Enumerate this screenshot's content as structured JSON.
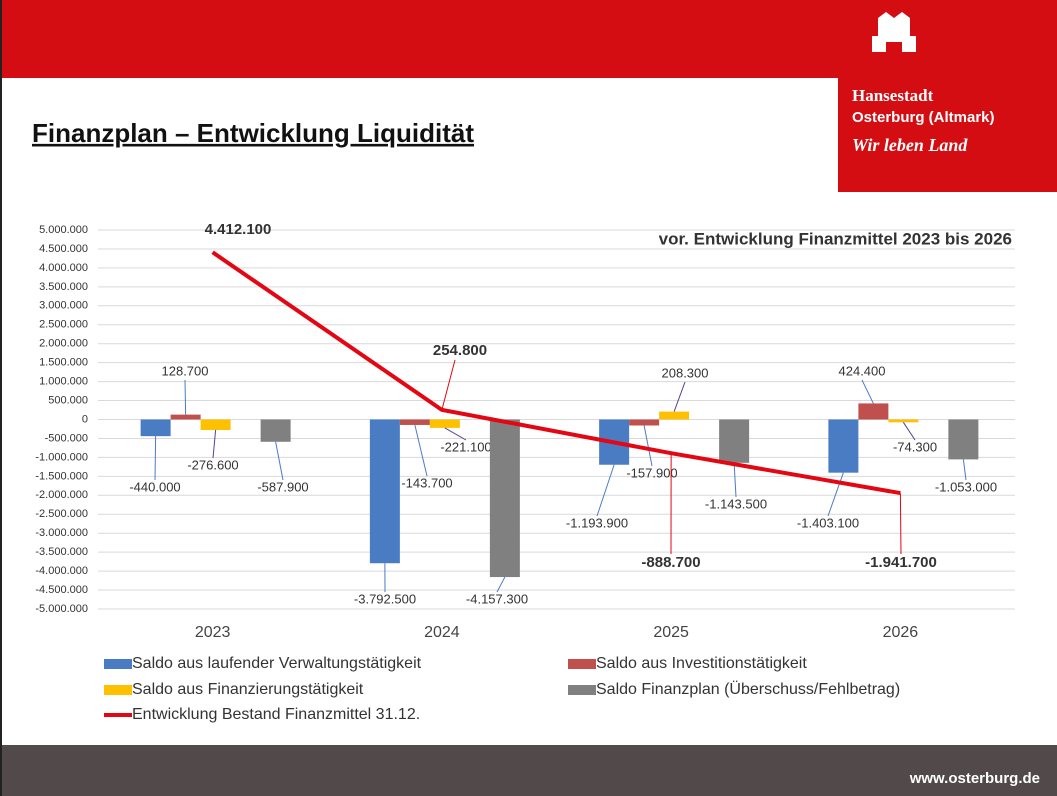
{
  "slide": {
    "title": "Finanzplan – Entwicklung Liquidität",
    "logo_line1": "Hansestadt",
    "logo_line2": "Osterburg (Altmark)",
    "logo_slogan": "Wir leben Land",
    "footer": "www.osterburg.de"
  },
  "chart_data": {
    "type": "bar",
    "title": "vor. Entwicklung Finanzmittel  2023 bis 2026",
    "categories": [
      "2023",
      "2024",
      "2025",
      "2026"
    ],
    "series": [
      {
        "name": "Saldo aus laufender Verwaltungstätigkeit",
        "color": "#4a7cc4",
        "values": [
          -440000,
          -3792500,
          -1193900,
          -1403100
        ],
        "value_labels": [
          "-440.000",
          "-3.792.500",
          "-1.193.900",
          "-1.403.100"
        ]
      },
      {
        "name": "Saldo aus Investitionstätigkeit",
        "color": "#c0504d",
        "values": [
          128700,
          -143700,
          -157900,
          424400
        ],
        "value_labels": [
          "128.700",
          "-143.700",
          "-157.900",
          "424.400"
        ]
      },
      {
        "name": "Saldo aus Finanzierungstätigkeit",
        "color": "#ffc000",
        "values": [
          -276600,
          -221100,
          208300,
          -74300
        ],
        "value_labels": [
          "-276.600",
          "-221.100",
          "208.300",
          "-74.300"
        ]
      },
      {
        "name": "Saldo Finanzplan (Überschuss/Fehlbetrag)",
        "color": "#808080",
        "values": [
          -587900,
          -4157300,
          -1143500,
          -1053000
        ],
        "value_labels": [
          "-587.900",
          "-4.157.300",
          "-1.143.500",
          "-1.053.000"
        ]
      },
      {
        "name": "Entwicklung Bestand Finanzmittel 31.12.",
        "type": "line",
        "color": "#e30613",
        "values": [
          4412100,
          254800,
          -888700,
          -1941700
        ],
        "value_labels": [
          "4.412.100",
          "254.800",
          "-888.700",
          "-1.941.700"
        ]
      }
    ],
    "ylim": [
      -5000000,
      5000000
    ],
    "yticks": [
      {
        "value": -5000000,
        "label": "-5.000.000"
      },
      {
        "value": -4500000,
        "label": "-4.500.000"
      },
      {
        "value": -4000000,
        "label": "-4.000.000"
      },
      {
        "value": -3500000,
        "label": "-3.500.000"
      },
      {
        "value": -3000000,
        "label": "-3.000.000"
      },
      {
        "value": -2500000,
        "label": "-2.500.000"
      },
      {
        "value": -2000000,
        "label": "-2.000.000"
      },
      {
        "value": -1500000,
        "label": "-1.500.000"
      },
      {
        "value": -1000000,
        "label": "-1.000.000"
      },
      {
        "value": -500000,
        "label": "-500.000"
      },
      0,
      {
        "value": 500000,
        "label": "500.000"
      },
      {
        "value": 1000000,
        "label": "1.000.000"
      },
      {
        "value": 1500000,
        "label": "1.500.000"
      },
      {
        "value": 2000000,
        "label": "2.000.000"
      },
      {
        "value": 2500000,
        "label": "2.500.000"
      },
      {
        "value": 3000000,
        "label": "3.000.000"
      },
      {
        "value": 3500000,
        "label": "3.500.000"
      },
      {
        "value": 4000000,
        "label": "4.000.000"
      },
      {
        "value": 4500000,
        "label": "4.500.000"
      },
      {
        "value": 5000000,
        "label": "5.000.000"
      }
    ],
    "grid": true,
    "legend": "bottom"
  }
}
